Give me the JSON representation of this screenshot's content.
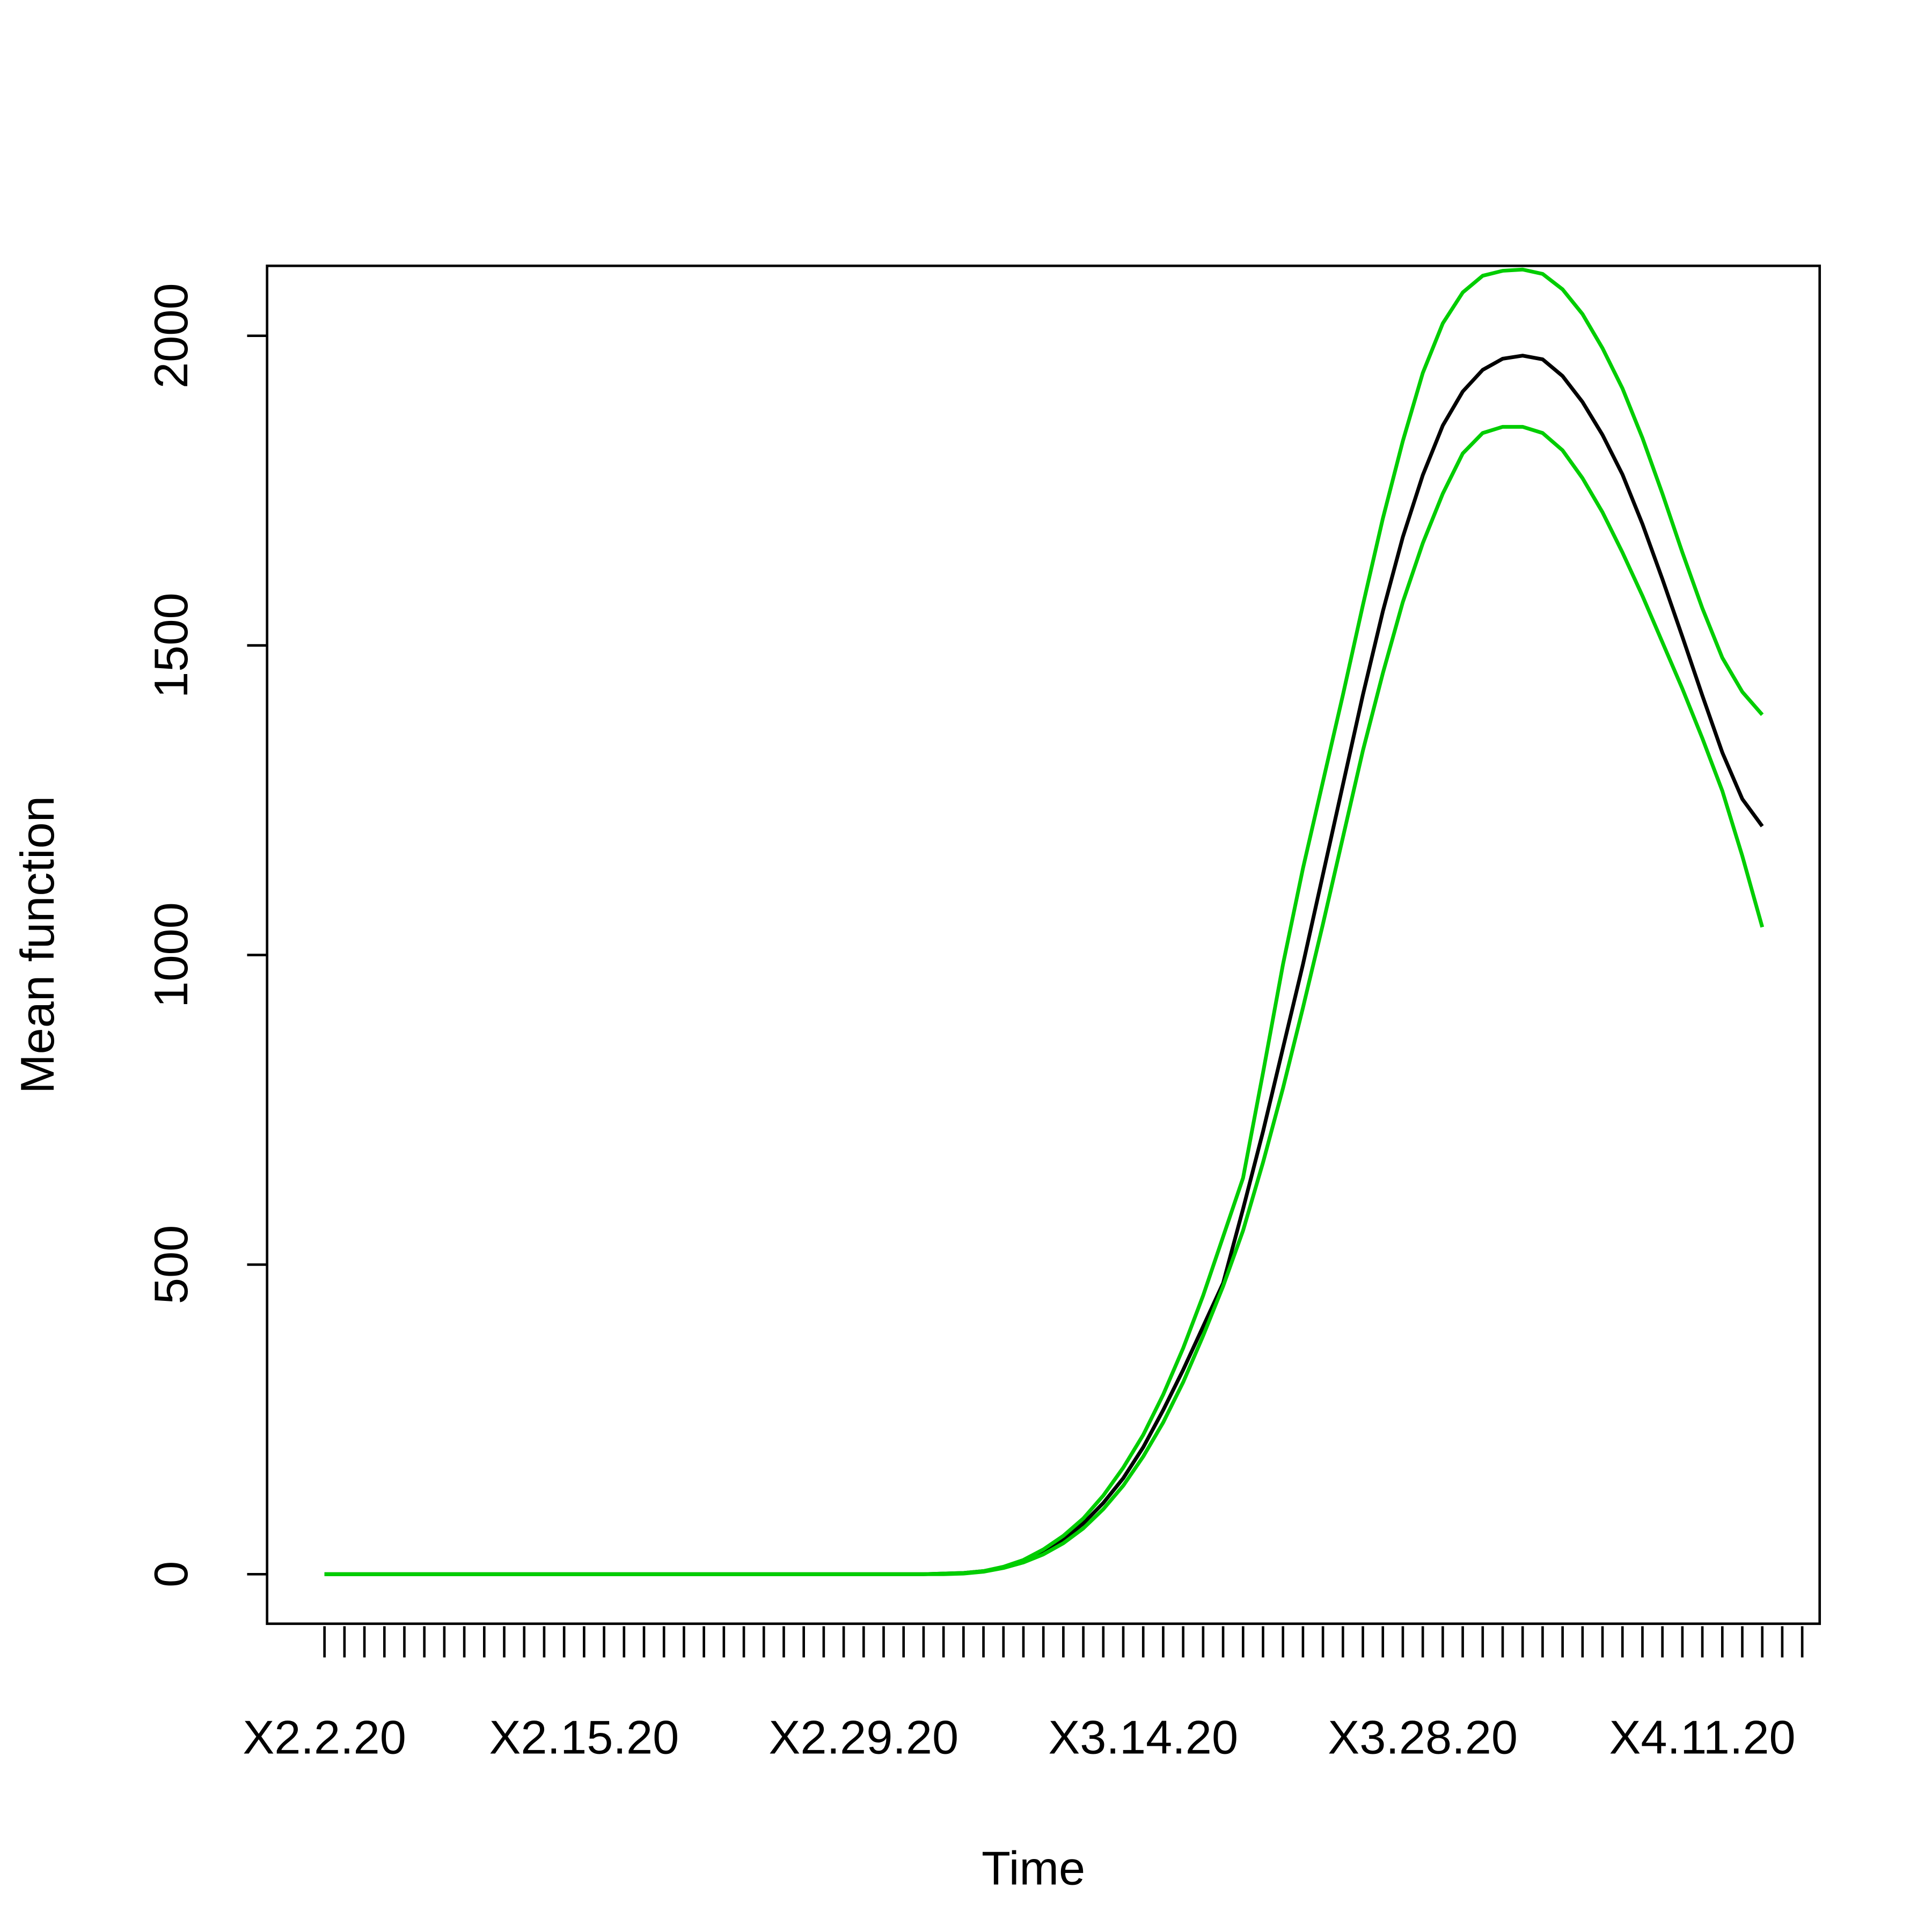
{
  "chart_data": {
    "type": "line",
    "x_label": "Time",
    "y_label": "Mean function",
    "categories": [
      "X2.2.20",
      null,
      null,
      null,
      null,
      null,
      null,
      null,
      null,
      null,
      null,
      null,
      null,
      "X2.15.20",
      null,
      null,
      null,
      null,
      null,
      null,
      null,
      null,
      null,
      null,
      null,
      null,
      null,
      "X2.29.20",
      null,
      null,
      null,
      null,
      null,
      null,
      null,
      null,
      null,
      null,
      null,
      null,
      null,
      "X3.14.20",
      null,
      null,
      null,
      null,
      null,
      null,
      null,
      null,
      null,
      null,
      null,
      null,
      null,
      "X3.28.20",
      null,
      null,
      null,
      null,
      null,
      null,
      null,
      null,
      null,
      null,
      null,
      null,
      null,
      "X4.11.20",
      null,
      null,
      null,
      null,
      null
    ],
    "series": [
      {
        "color": "#000000",
        "values": [
          0,
          0,
          0,
          0,
          0,
          0,
          0,
          0,
          0,
          0,
          0,
          0,
          0,
          0,
          0,
          0,
          0,
          0,
          0,
          0,
          0,
          0,
          0,
          0,
          0,
          0,
          0,
          0,
          0,
          0,
          0,
          1,
          2,
          5,
          11,
          21,
          36,
          56,
          82,
          115,
          155,
          205,
          265,
          330,
          400,
          470,
          590,
          715,
          850,
          985,
          1130,
          1275,
          1420,
          1555,
          1675,
          1775,
          1855,
          1910,
          1945,
          1963,
          1968,
          1962,
          1935,
          1893,
          1840,
          1776,
          1696,
          1607,
          1514,
          1419,
          1327,
          1252,
          1208,
          null,
          null
        ]
      },
      {
        "color": "#00cd00",
        "values": [
          0,
          0,
          0,
          0,
          0,
          0,
          0,
          0,
          0,
          0,
          0,
          0,
          0,
          0,
          0,
          0,
          0,
          0,
          0,
          0,
          0,
          0,
          0,
          0,
          0,
          0,
          0,
          0,
          0,
          0,
          0,
          1,
          2,
          5,
          12,
          23,
          40,
          62,
          90,
          127,
          172,
          225,
          290,
          365,
          450,
          545,
          640,
          810,
          985,
          1140,
          1280,
          1420,
          1565,
          1705,
          1830,
          1940,
          2020,
          2070,
          2097,
          2105,
          2107,
          2100,
          2075,
          2035,
          1980,
          1915,
          1835,
          1745,
          1650,
          1560,
          1480,
          1425,
          1388,
          null,
          null
        ]
      },
      {
        "color": "#00cd00",
        "values": [
          0,
          0,
          0,
          0,
          0,
          0,
          0,
          0,
          0,
          0,
          0,
          0,
          0,
          0,
          0,
          0,
          0,
          0,
          0,
          0,
          0,
          0,
          0,
          0,
          0,
          0,
          0,
          0,
          0,
          0,
          0,
          0,
          1,
          4,
          10,
          19,
          32,
          50,
          74,
          105,
          143,
          190,
          245,
          310,
          385,
          465,
          555,
          665,
          785,
          915,
          1050,
          1190,
          1330,
          1455,
          1570,
          1665,
          1745,
          1810,
          1843,
          1853,
          1853,
          1843,
          1815,
          1770,
          1715,
          1650,
          1580,
          1505,
          1430,
          1350,
          1265,
          1160,
          1045,
          null,
          null
        ]
      }
    ],
    "ylim": [
      -80,
      2113
    ],
    "yticks": [
      0,
      500,
      1000,
      1500,
      2000
    ],
    "grid": false
  }
}
